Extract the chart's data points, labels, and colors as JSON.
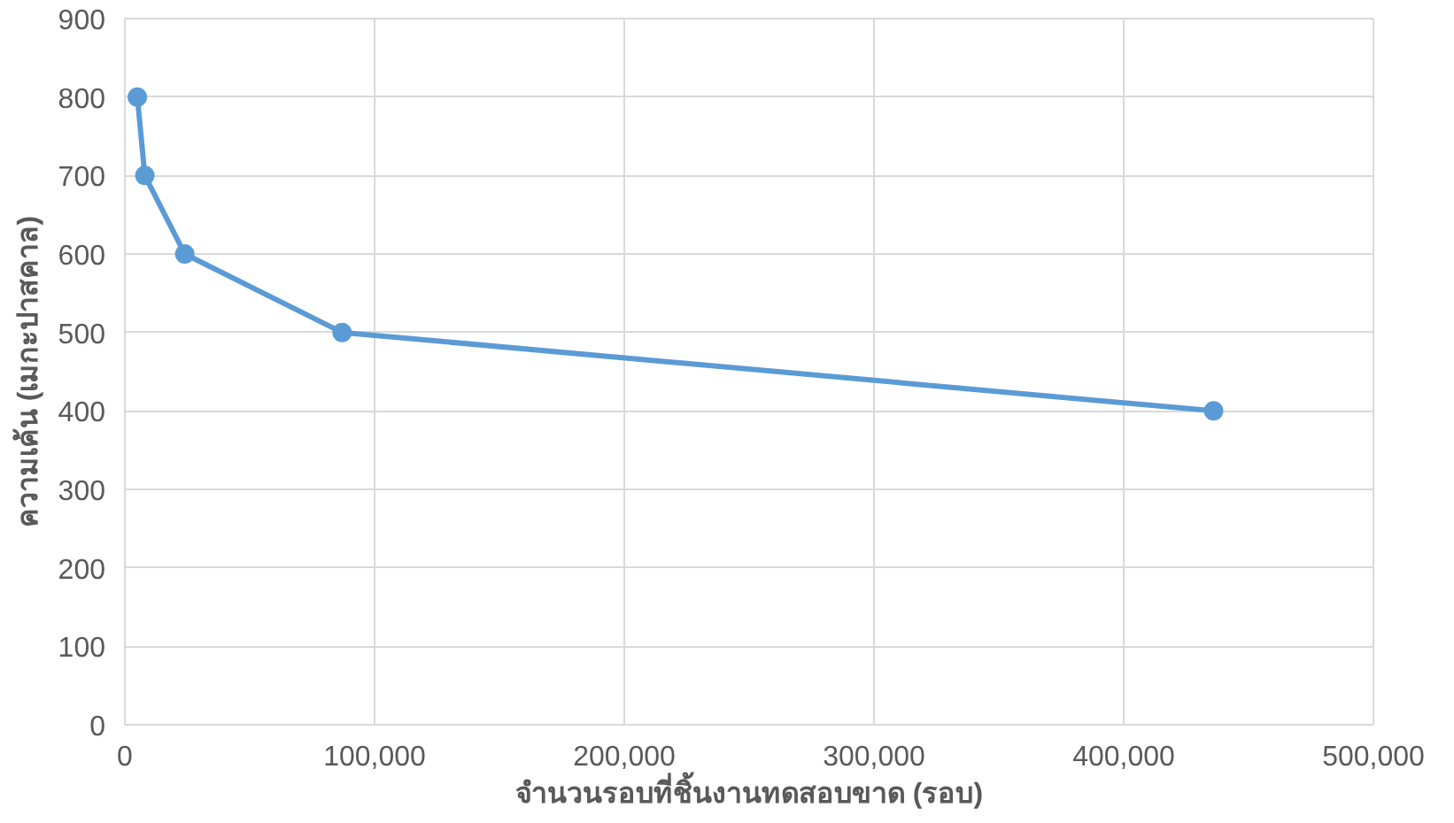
{
  "chart_data": {
    "type": "line",
    "xlabel": "จำนวนรอบที่ชิ้นงานทดสอบขาด (รอบ)",
    "ylabel": "ความเค้น (เมกะปาสคาล)",
    "x": [
      5000,
      8000,
      24000,
      87000,
      436000
    ],
    "series": [
      {
        "color": "#5b9bd5",
        "values": [
          800,
          700,
          600,
          500,
          400
        ]
      }
    ],
    "xlim": [
      0,
      500000
    ],
    "xticks": [
      {
        "value": 0,
        "label": "0"
      },
      {
        "value": 100000,
        "label": "100,000"
      },
      {
        "value": 200000,
        "label": "200,000"
      },
      {
        "value": 300000,
        "label": "300,000"
      },
      {
        "value": 400000,
        "label": "400,000"
      },
      {
        "value": 500000,
        "label": "500,000"
      }
    ],
    "ylim": [
      0,
      900
    ],
    "yticks": [
      0,
      100,
      200,
      300,
      400,
      500,
      600,
      700,
      800,
      900
    ],
    "grid": true,
    "marker": "circle",
    "line_style": "solid"
  }
}
